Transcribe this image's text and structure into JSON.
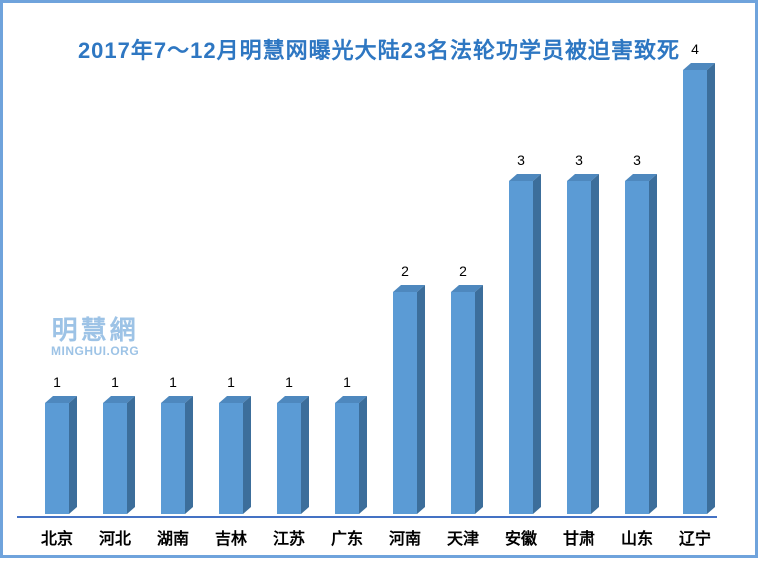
{
  "frame": {
    "border_color": "#6FA3DC",
    "background": "#FFFFFF"
  },
  "title": {
    "text": "2017年7～12月明慧网曝光大陆23名法轮功学员被迫害致死",
    "color": "#2E77C2"
  },
  "watermark": {
    "line1": "明慧網",
    "line2": "MINGHUI.ORG",
    "color": "#9DC3E6"
  },
  "chart_data": {
    "type": "bar",
    "style": "3d-column",
    "title": "2017年7～12月明慧网曝光大陆23名法轮功学员被迫害致死",
    "categories": [
      "北京",
      "河北",
      "湖南",
      "吉林",
      "江苏",
      "广东",
      "河南",
      "天津",
      "安徽",
      "甘肃",
      "山东",
      "辽宁"
    ],
    "values": [
      1,
      1,
      1,
      1,
      1,
      1,
      2,
      2,
      3,
      3,
      3,
      4
    ],
    "data_labels_shown": true,
    "xlabel": "",
    "ylabel": "",
    "ylim": [
      0,
      4
    ],
    "grid": false,
    "legend_position": "none",
    "colors": {
      "bar_front": "#5B9BD5",
      "bar_top": "#4E88BE",
      "bar_side": "#3C6E9B",
      "axis_line": "#4472C4",
      "value_label": "#000000",
      "category_label": "#000000"
    }
  }
}
